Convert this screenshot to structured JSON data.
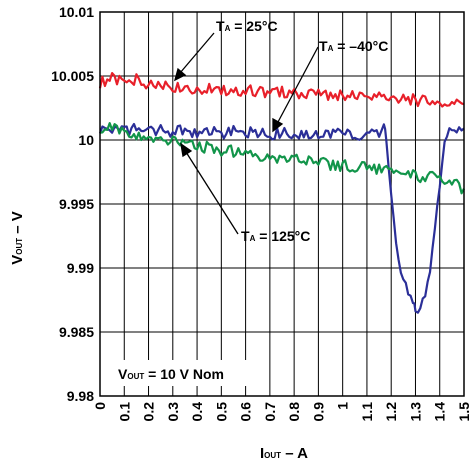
{
  "chart_data": {
    "type": "line",
    "xlabel": {
      "main": "I",
      "sub": "OUT",
      "rest": " – A"
    },
    "ylabel": {
      "main": "V",
      "sub": "OUT",
      "rest": " – V"
    },
    "xlim": [
      0,
      1.5
    ],
    "ylim": [
      9.98,
      10.01
    ],
    "x_ticks": [
      "0",
      "0.1",
      "0.2",
      "0.3",
      "0.4",
      "0.5",
      "0.6",
      "0.7",
      "0.8",
      "0.9",
      "1",
      "1.1",
      "1.2",
      "1.3",
      "1.4",
      "1.5"
    ],
    "y_ticks": [
      "9.98",
      "9.985",
      "9.99",
      "9.995",
      "10",
      "10.005",
      "10.01"
    ],
    "grid": true,
    "series": [
      {
        "name": "T_A = 25°C",
        "label": {
          "main": "T",
          "sub": "A",
          "rest": " = 25°C"
        },
        "color": "#e8202a",
        "x": [
          0,
          0.05,
          0.1,
          0.15,
          0.2,
          0.25,
          0.3,
          0.35,
          0.4,
          0.45,
          0.5,
          0.55,
          0.6,
          0.65,
          0.7,
          0.75,
          0.8,
          0.85,
          0.9,
          0.95,
          1.0,
          1.05,
          1.1,
          1.15,
          1.2,
          1.25,
          1.3,
          1.35,
          1.4,
          1.45,
          1.5
        ],
        "values": [
          10.0045,
          10.0048,
          10.0044,
          10.0047,
          10.0042,
          10.0044,
          10.0041,
          10.0043,
          10.0039,
          10.0041,
          10.0038,
          10.004,
          10.0038,
          10.0039,
          10.0037,
          10.0038,
          10.0036,
          10.0037,
          10.0035,
          10.0036,
          10.0034,
          10.0035,
          10.0033,
          10.0034,
          10.0032,
          10.0033,
          10.0031,
          10.003,
          10.003,
          10.0028,
          10.0028
        ]
      },
      {
        "name": "T_A = –40°C",
        "label": {
          "main": "T",
          "sub": "A",
          "rest": " = –40°C"
        },
        "color": "#2b2f98",
        "x": [
          0,
          0.05,
          0.1,
          0.15,
          0.2,
          0.25,
          0.3,
          0.35,
          0.4,
          0.45,
          0.5,
          0.55,
          0.6,
          0.65,
          0.7,
          0.75,
          0.8,
          0.85,
          0.9,
          0.95,
          1.0,
          1.05,
          1.1,
          1.15,
          1.17,
          1.18,
          1.2,
          1.22,
          1.25,
          1.27,
          1.29,
          1.3,
          1.32,
          1.34,
          1.36,
          1.38,
          1.4,
          1.42,
          1.44,
          1.46,
          1.48,
          1.5
        ],
        "values": [
          10.0008,
          10.001,
          10.0007,
          10.0009,
          10.0007,
          10.0008,
          10.0006,
          10.0008,
          10.0006,
          10.0007,
          10.0005,
          10.0007,
          10.0005,
          10.0006,
          10.0004,
          10.0006,
          10.0004,
          10.0005,
          10.0004,
          10.0006,
          10.0004,
          10.0005,
          10.0003,
          10.0005,
          10.0008,
          10.0002,
          9.996,
          9.992,
          9.989,
          9.9878,
          9.9872,
          9.9865,
          9.9872,
          9.988,
          9.9895,
          9.993,
          9.9965,
          9.9995,
          10.0008,
          10.001,
          10.0008,
          10.0009
        ]
      },
      {
        "name": "T_A = 125°C",
        "label": {
          "main": "T",
          "sub": "A",
          "rest": " = 125°C"
        },
        "color": "#12954a",
        "x": [
          0,
          0.05,
          0.1,
          0.15,
          0.2,
          0.25,
          0.3,
          0.35,
          0.4,
          0.45,
          0.5,
          0.55,
          0.6,
          0.65,
          0.7,
          0.75,
          0.8,
          0.85,
          0.9,
          0.95,
          1.0,
          1.05,
          1.1,
          1.15,
          1.2,
          1.25,
          1.3,
          1.35,
          1.4,
          1.45,
          1.5
        ],
        "values": [
          10.001,
          10.0009,
          10.0007,
          10.0005,
          10.0003,
          10.0001,
          9.9999,
          9.9997,
          9.9995,
          9.9994,
          9.9992,
          9.9991,
          9.999,
          9.9988,
          9.9987,
          9.9986,
          9.9985,
          9.9984,
          9.9982,
          9.9981,
          9.998,
          9.9979,
          9.9978,
          9.9977,
          9.9975,
          9.9974,
          9.9972,
          9.9971,
          9.997,
          9.9966,
          9.9962
        ]
      }
    ],
    "annotations": [
      {
        "main": "V",
        "sub": "OUT",
        "rest": " = 10 V Nom"
      }
    ]
  }
}
